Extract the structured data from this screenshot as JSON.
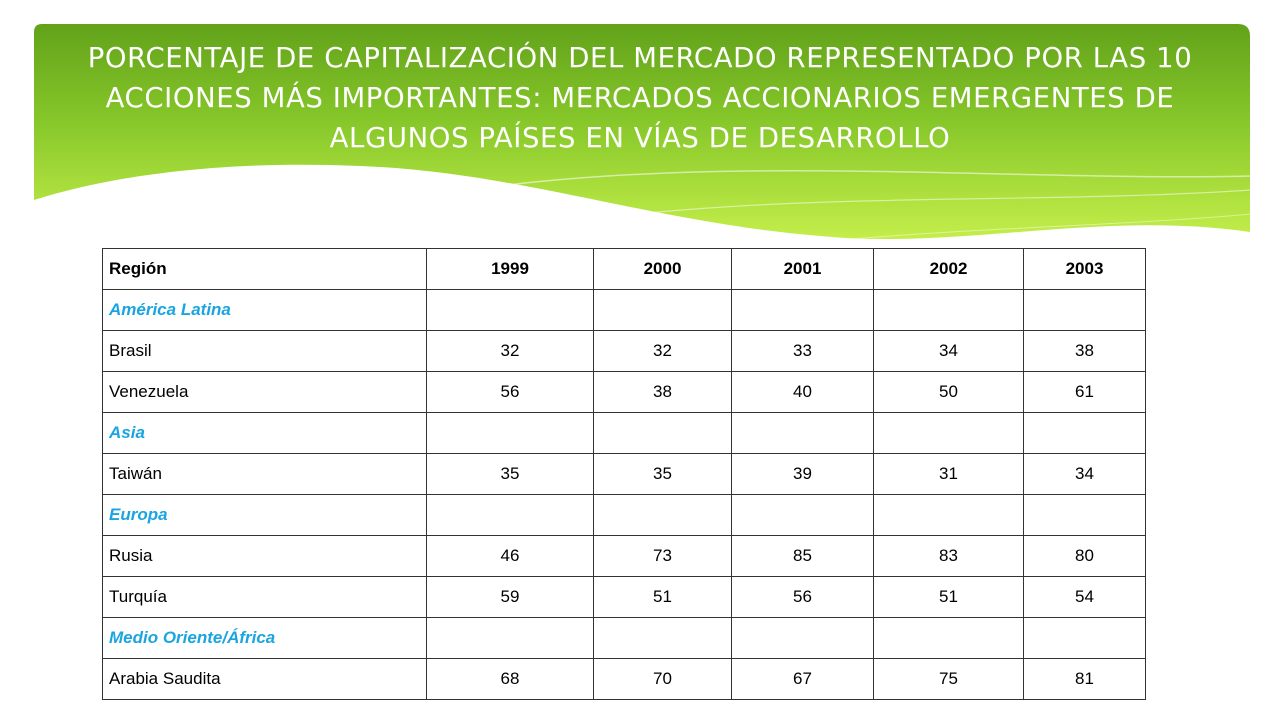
{
  "slide": {
    "title": "PORCENTAJE DE CAPITALIZACIÓN DEL MERCADO REPRESENTADO POR LAS 10 ACCIONES MÁS IMPORTANTES: MERCADOS ACCIONARIOS EMERGENTES DE ALGUNOS PAÍSES EN VÍAS DE DESARROLLO"
  },
  "colors": {
    "banner_dark": "#62a21a",
    "banner_light": "#c4ee4a",
    "group_label": "#1aa5e0",
    "title_text": "#ffffff"
  },
  "table": {
    "headers": [
      "Región",
      "1999",
      "2000",
      "2001",
      "2002",
      "2003"
    ],
    "rows": [
      {
        "type": "group",
        "label": "América Latina"
      },
      {
        "type": "data",
        "label": "Brasil",
        "values": [
          "32",
          "32",
          "33",
          "34",
          "38"
        ]
      },
      {
        "type": "data",
        "label": "Venezuela",
        "values": [
          "56",
          "38",
          "40",
          "50",
          "61"
        ]
      },
      {
        "type": "group",
        "label": "Asia"
      },
      {
        "type": "data",
        "label": "Taiwán",
        "values": [
          "35",
          "35",
          "39",
          "31",
          "34"
        ]
      },
      {
        "type": "group",
        "label": "Europa"
      },
      {
        "type": "data",
        "label": "Rusia",
        "values": [
          "46",
          "73",
          "85",
          "83",
          "80"
        ]
      },
      {
        "type": "data",
        "label": "Turquía",
        "values": [
          "59",
          "51",
          "56",
          "51",
          "54"
        ]
      },
      {
        "type": "group",
        "label": "Medio Oriente/África"
      },
      {
        "type": "data",
        "label": "Arabia Saudita",
        "values": [
          "68",
          "70",
          "67",
          "75",
          "81"
        ]
      }
    ]
  }
}
